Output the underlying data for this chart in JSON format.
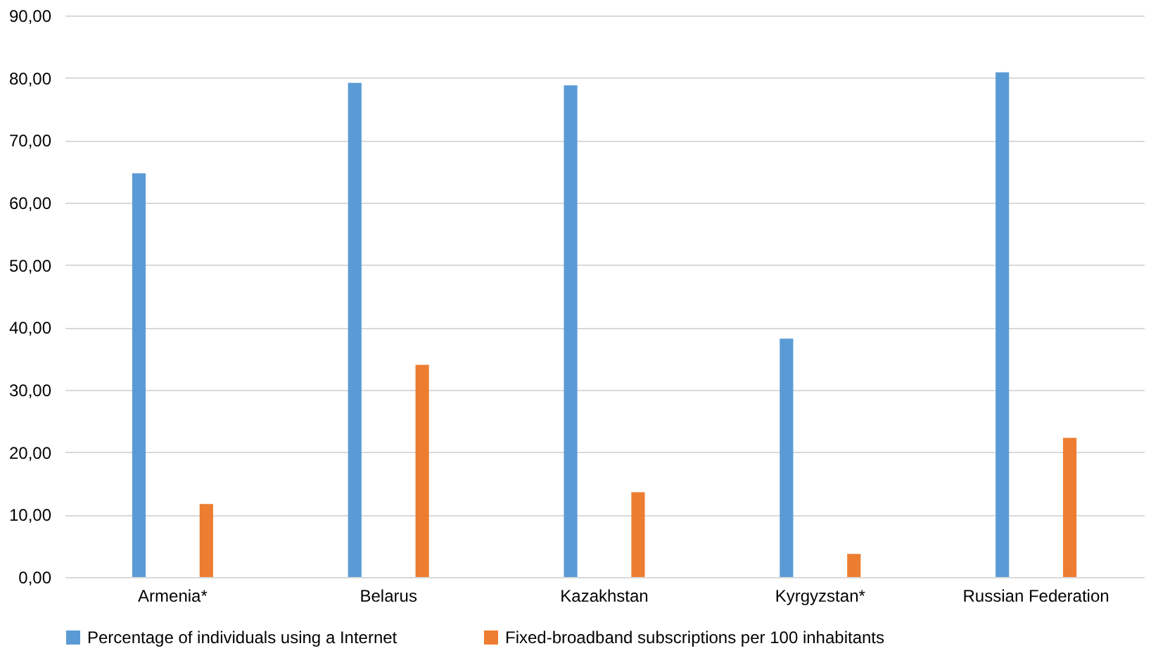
{
  "chart_data": {
    "type": "bar",
    "categories": [
      "Armenia*",
      "Belarus",
      "Kazakhstan",
      "Kyrgyzstan*",
      "Russian Federation"
    ],
    "series": [
      {
        "name": "Percentage of individuals using a Internet",
        "color": "#5b9bd5",
        "values": [
          64.7,
          79.2,
          78.8,
          38.2,
          80.9
        ]
      },
      {
        "name": "Fixed-broadband subscriptions per 100 inhabitants",
        "color": "#ed7d31",
        "values": [
          11.7,
          34.0,
          13.6,
          3.7,
          22.3
        ]
      }
    ],
    "ylim": [
      0,
      90
    ],
    "yticks": [
      {
        "value": 0,
        "label": "0,00"
      },
      {
        "value": 10,
        "label": "10,00"
      },
      {
        "value": 20,
        "label": "20,00"
      },
      {
        "value": 30,
        "label": "30,00"
      },
      {
        "value": 40,
        "label": "40,00"
      },
      {
        "value": 50,
        "label": "50,00"
      },
      {
        "value": 60,
        "label": "60,00"
      },
      {
        "value": 70,
        "label": "70,00"
      },
      {
        "value": 80,
        "label": "80,00"
      },
      {
        "value": 90,
        "label": "90,00"
      }
    ],
    "grid": "y",
    "legend": "bottom"
  }
}
